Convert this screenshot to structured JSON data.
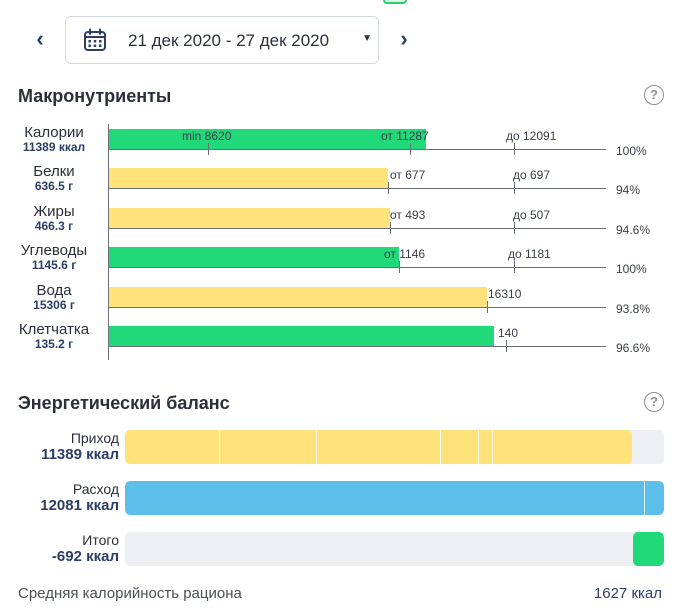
{
  "date_nav": {
    "range": "21 дек 2020 - 27 дек 2020",
    "prev_symbol": "‹",
    "next_symbol": "›",
    "caret_symbol": "▼"
  },
  "macronutrients": {
    "title": "Макронутриенты",
    "help_symbol": "?",
    "axis_max": 13500,
    "rows": [
      {
        "name": "Калории",
        "value": "11389 ккал",
        "color": "green",
        "amount": 8620,
        "ticks": [
          {
            "label": "min 8620",
            "amount": 2700,
            "label_amount": 2000
          },
          {
            "label": "от 11287",
            "amount": 8200,
            "label_amount": 7400
          },
          {
            "label": "до 12091",
            "amount": 11000,
            "label_amount": 10800
          }
        ],
        "percent": "100%"
      },
      {
        "name": "Белки",
        "value": "636.5 г",
        "color": "yellow",
        "amount": 7590,
        "ticks": [
          {
            "label": "от 677",
            "amount": 7590,
            "label_amount": 7640
          },
          {
            "label": "до 697",
            "amount": 11000,
            "label_amount": 10980
          }
        ],
        "percent": "94%"
      },
      {
        "name": "Жиры",
        "value": "466.3 г",
        "color": "yellow",
        "amount": 7650,
        "ticks": [
          {
            "label": "от 493",
            "amount": 7650,
            "label_amount": 7640
          },
          {
            "label": "до 507",
            "amount": 11000,
            "label_amount": 10980
          }
        ],
        "percent": "94.6%"
      },
      {
        "name": "Углеводы",
        "value": "1145.6 г",
        "color": "green",
        "amount": 7900,
        "ticks": [
          {
            "label": "от 1146",
            "amount": 7900,
            "label_amount": 7480
          },
          {
            "label": "до 1181",
            "amount": 11000,
            "label_amount": 10850
          }
        ],
        "percent": "100%"
      },
      {
        "name": "Вода",
        "value": "15306 г",
        "color": "yellow",
        "amount": 10270,
        "ticks": [
          {
            "label": "16310",
            "amount": 10270,
            "label_amount": 10300
          }
        ],
        "percent": "93.8%"
      },
      {
        "name": "Клетчатка",
        "value": "135.2 г",
        "color": "green",
        "amount": 10460,
        "ticks": [
          {
            "label": "140",
            "amount": 10800,
            "label_amount": 10570
          }
        ],
        "percent": "96.6%"
      }
    ]
  },
  "energy_balance": {
    "title": "Энергетический баланс",
    "help_symbol": "?",
    "rows": [
      {
        "name": "Приход",
        "value": "11389 ккал",
        "color": "#ffe27a",
        "fill": 0.94,
        "segments": [
          0.175,
          0.355,
          0.585,
          0.655,
          0.68
        ]
      },
      {
        "name": "Расход",
        "value": "12081 ккал",
        "color": "#5bbfe9",
        "fill": 1.0,
        "segments": [
          0.963
        ]
      },
      {
        "name": "Итого",
        "value": "-692 ккал",
        "color": "#22d97a",
        "fill": 0.057,
        "align": "right",
        "segments": []
      }
    ]
  },
  "footer": {
    "label": "Средняя калорийность рациона",
    "value": "1627 ккал"
  },
  "colors": {
    "green": "#22d97a",
    "yellow": "#ffe27a",
    "blue": "#5bbfe9",
    "navy": "#2c3e66"
  }
}
